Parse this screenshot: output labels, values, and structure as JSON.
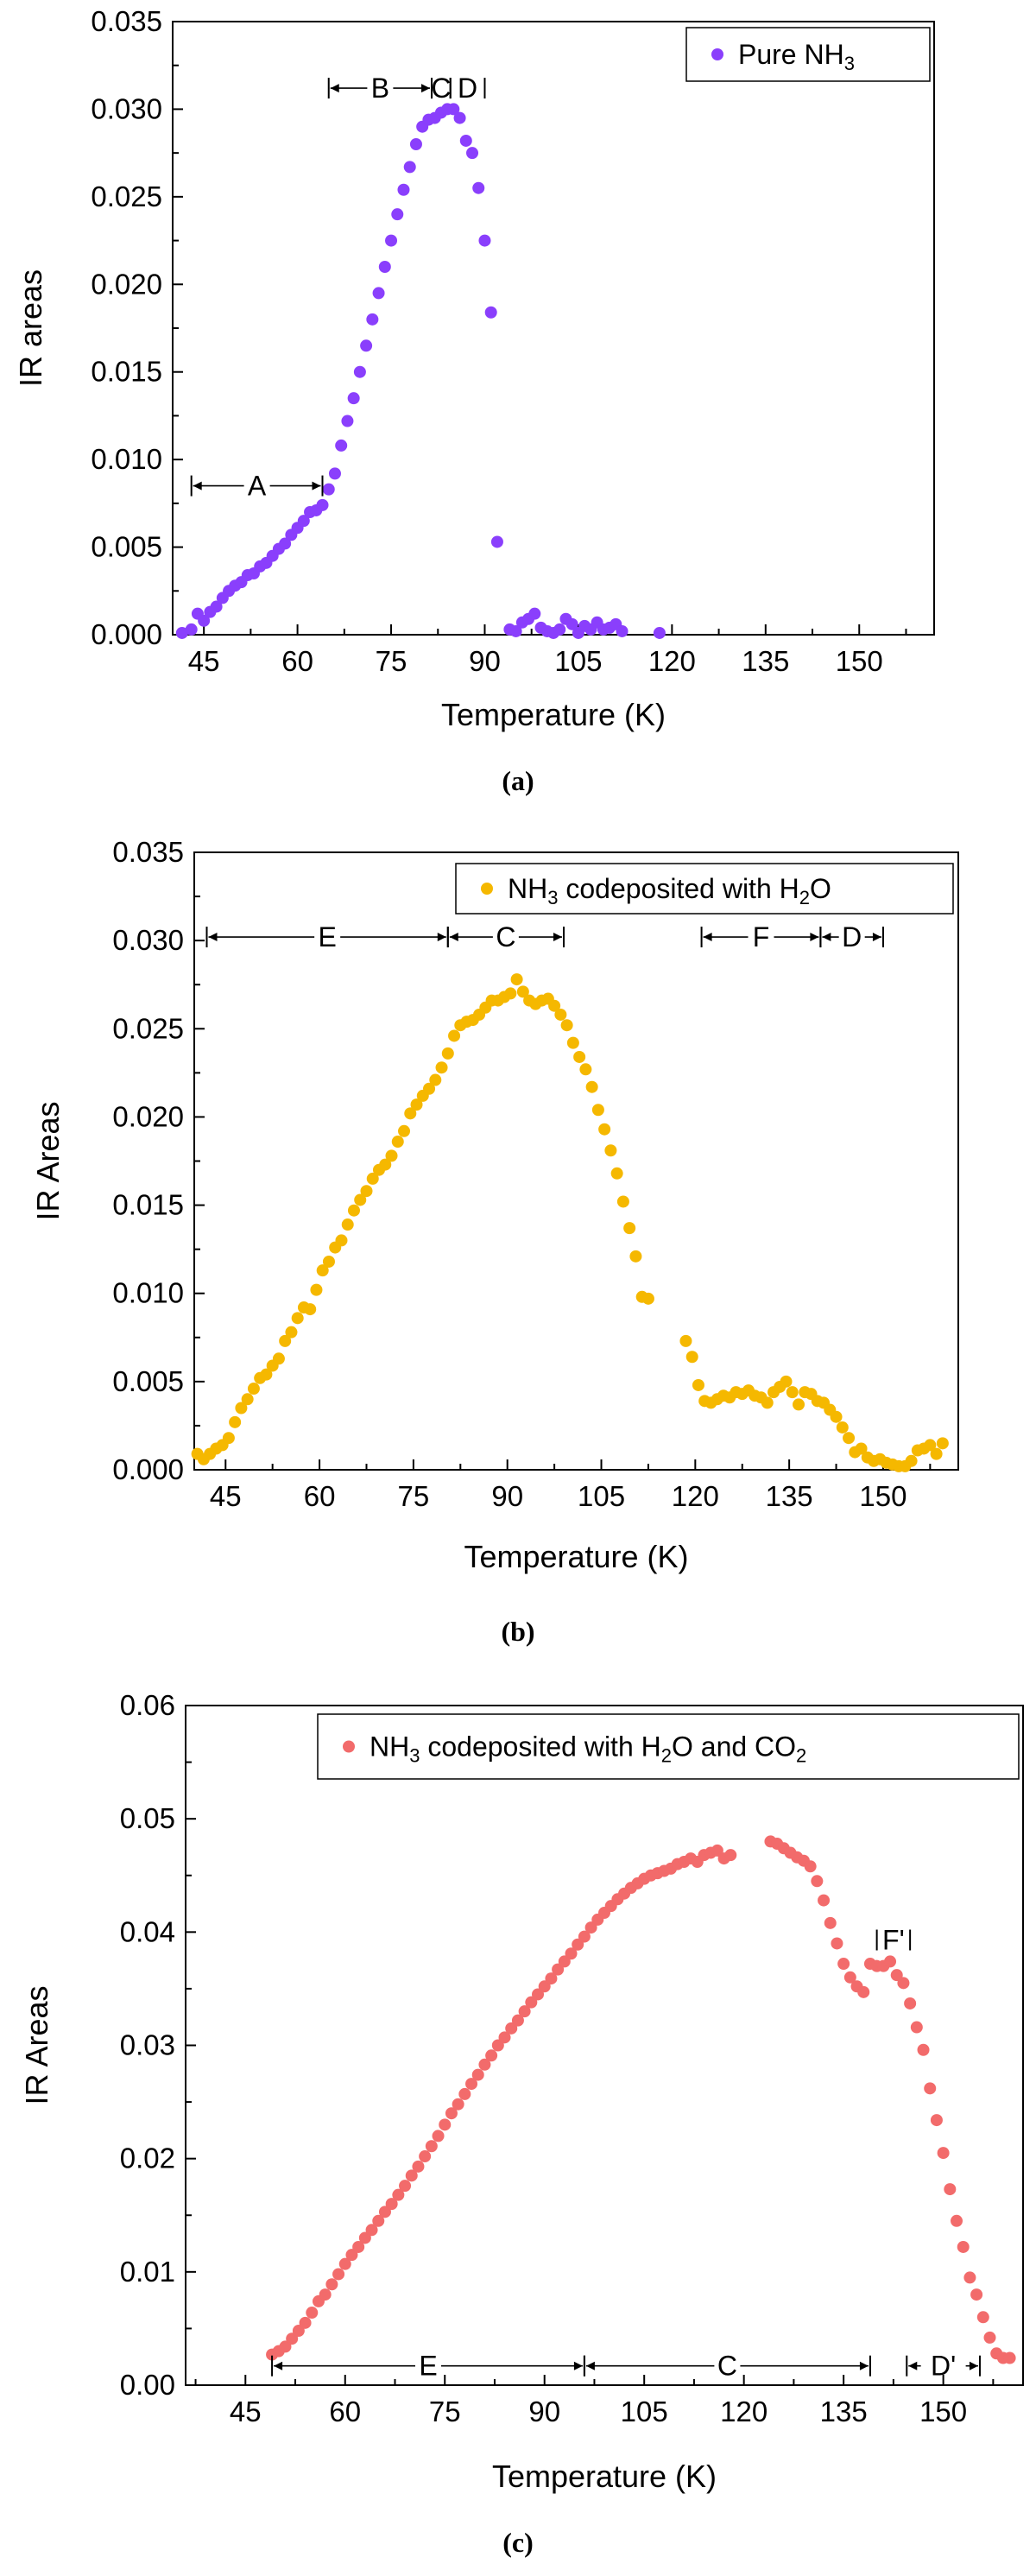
{
  "chart_data": [
    {
      "type": "scatter",
      "caption": "(a)",
      "xlabel": "Temperature (K)",
      "ylabel": "IR areas",
      "xlim": [
        40,
        162
      ],
      "ylim": [
        0,
        0.035
      ],
      "xticks": [
        "45",
        "60",
        "75",
        "90",
        "105",
        "120",
        "135",
        "150"
      ],
      "yticks": [
        "0.000",
        "0.005",
        "0.010",
        "0.015",
        "0.020",
        "0.025",
        "0.030",
        "0.035"
      ],
      "color": "#8a3ffc",
      "legend": {
        "label": "Pure NH",
        "sub": "3",
        "tail": "",
        "sub2": "",
        "tail2": "",
        "location": "top-right"
      },
      "regions": [
        {
          "label": "A",
          "x1": 43,
          "x2": 64,
          "y": 0.0085
        },
        {
          "label": "B",
          "x1": 65,
          "x2": 81.5,
          "y": 0.0312
        },
        {
          "label": "C",
          "x1": 81.5,
          "x2": 84.5,
          "y": 0.0312
        },
        {
          "label": "D",
          "x1": 84.5,
          "x2": 90,
          "y": 0.0312
        }
      ],
      "x": [
        41.5,
        43,
        44,
        45,
        46,
        47,
        48,
        49,
        50,
        51,
        52,
        53,
        54,
        55,
        56,
        57,
        58,
        59,
        60,
        61,
        62,
        63,
        64,
        65,
        66,
        67,
        68,
        69,
        70,
        71,
        72,
        73,
        74,
        75,
        76,
        77,
        78,
        79,
        80,
        81,
        82,
        83,
        84,
        85,
        86,
        87,
        88,
        89,
        90,
        91,
        92,
        94,
        95,
        96,
        97,
        98,
        99,
        100,
        101,
        102,
        103,
        104,
        105,
        106,
        107,
        108,
        109,
        110,
        111,
        112,
        118
      ],
      "y": [
        0.0001,
        0.0003,
        0.0012,
        0.0008,
        0.0013,
        0.0016,
        0.0021,
        0.0025,
        0.0028,
        0.003,
        0.0034,
        0.0035,
        0.0039,
        0.0041,
        0.0045,
        0.0049,
        0.0052,
        0.0057,
        0.0061,
        0.0065,
        0.007,
        0.0071,
        0.0074,
        0.0083,
        0.0092,
        0.0108,
        0.0122,
        0.0135,
        0.015,
        0.0165,
        0.018,
        0.0195,
        0.021,
        0.0225,
        0.024,
        0.0254,
        0.0267,
        0.028,
        0.029,
        0.0294,
        0.0295,
        0.0298,
        0.03,
        0.03,
        0.0295,
        0.0282,
        0.0275,
        0.0255,
        0.0225,
        0.0184,
        0.0053,
        0.0003,
        0.0002,
        0.0007,
        0.0009,
        0.0012,
        0.0004,
        0.0002,
        0.0001,
        0.0003,
        0.0009,
        0.0006,
        0.0001,
        0.0005,
        0.0003,
        0.0007,
        0.0003,
        0.0004,
        0.0006,
        0.0002,
        0.0001
      ]
    },
    {
      "type": "scatter",
      "caption": "(b)",
      "xlabel": "Temperature (K)",
      "ylabel": "IR Areas",
      "xlim": [
        40,
        162
      ],
      "ylim": [
        0,
        0.035
      ],
      "xticks": [
        "45",
        "60",
        "75",
        "90",
        "105",
        "120",
        "135",
        "150"
      ],
      "yticks": [
        "0.000",
        "0.005",
        "0.010",
        "0.015",
        "0.020",
        "0.025",
        "0.030",
        "0.035"
      ],
      "color": "#f5b800",
      "legend": {
        "label": "NH",
        "sub": "3",
        "tail": " codeposited with H",
        "sub2": "2",
        "tail2": "O",
        "location": "top-right"
      },
      "regions": [
        {
          "label": "E",
          "x1": 42,
          "x2": 80.5,
          "y": 0.0302
        },
        {
          "label": "C",
          "x1": 80.5,
          "x2": 99,
          "y": 0.0302
        },
        {
          "label": "F",
          "x1": 121,
          "x2": 140,
          "y": 0.0302
        },
        {
          "label": "D",
          "x1": 140,
          "x2": 150,
          "y": 0.0302
        }
      ],
      "x": [
        40.5,
        41.5,
        42.5,
        43.5,
        44.5,
        45.5,
        46.5,
        47.5,
        48.5,
        49.5,
        50.5,
        51.5,
        52.5,
        53.5,
        54.5,
        55.5,
        56.5,
        57.5,
        58.5,
        59.5,
        60.5,
        61.5,
        62.5,
        63.5,
        64.5,
        65.5,
        66.5,
        67.5,
        68.5,
        69.5,
        70.5,
        71.5,
        72.5,
        73.5,
        74.5,
        75.5,
        76.5,
        77.5,
        78.5,
        79.5,
        80.5,
        81.5,
        82.5,
        83.5,
        84.5,
        85.5,
        86.5,
        87.5,
        88.5,
        89.5,
        90.5,
        91.5,
        92.5,
        93.5,
        94.5,
        95.5,
        96.5,
        97.5,
        98.5,
        99.5,
        100.5,
        101.5,
        102.5,
        103.5,
        104.5,
        105.5,
        106.5,
        107.5,
        108.5,
        109.5,
        110.5,
        111.5,
        112.5,
        118.5,
        119.5,
        120.5,
        121.5,
        122.5,
        123.5,
        124.5,
        125.5,
        126.5,
        127.5,
        128.5,
        129.5,
        130.5,
        131.5,
        132.5,
        133.5,
        134.5,
        135.5,
        136.5,
        137.5,
        138.5,
        139.5,
        140.5,
        141.5,
        142.5,
        143.5,
        144.5,
        145.5,
        146.5,
        147.5,
        148.5,
        149.5,
        150.5,
        151.5,
        152.5,
        153.5,
        154.5,
        155.5,
        156.5,
        157.5,
        158.5,
        159.5
      ],
      "y": [
        0.0009,
        0.0006,
        0.0009,
        0.0012,
        0.0014,
        0.0018,
        0.0027,
        0.0035,
        0.004,
        0.0046,
        0.0052,
        0.0054,
        0.0059,
        0.0063,
        0.0073,
        0.0078,
        0.0086,
        0.0092,
        0.0091,
        0.0102,
        0.0113,
        0.0118,
        0.0126,
        0.013,
        0.0139,
        0.0147,
        0.0153,
        0.0158,
        0.0165,
        0.017,
        0.0173,
        0.0178,
        0.0186,
        0.0192,
        0.0202,
        0.0207,
        0.0212,
        0.0216,
        0.0221,
        0.0228,
        0.0236,
        0.0246,
        0.0252,
        0.0254,
        0.0255,
        0.0258,
        0.0262,
        0.0266,
        0.0266,
        0.0268,
        0.027,
        0.0278,
        0.0271,
        0.0266,
        0.0264,
        0.0266,
        0.0267,
        0.0263,
        0.0258,
        0.0252,
        0.0242,
        0.0234,
        0.0227,
        0.0217,
        0.0204,
        0.0193,
        0.0181,
        0.0168,
        0.0152,
        0.0137,
        0.0121,
        0.0098,
        0.0097,
        0.0073,
        0.0064,
        0.0048,
        0.0039,
        0.0038,
        0.004,
        0.0042,
        0.0041,
        0.0044,
        0.0043,
        0.0045,
        0.0042,
        0.0041,
        0.0038,
        0.0044,
        0.0047,
        0.005,
        0.0044,
        0.0037,
        0.0044,
        0.0043,
        0.0039,
        0.0038,
        0.0034,
        0.003,
        0.0024,
        0.0018,
        0.001,
        0.0012,
        0.0007,
        0.0005,
        0.0006,
        0.0004,
        0.0003,
        0.0002,
        0.0002,
        0.0005,
        0.0011,
        0.0012,
        0.0014,
        0.0009,
        0.0015
      ]
    },
    {
      "type": "scatter",
      "caption": "(c)",
      "xlabel": "Temperature (K)",
      "ylabel": "IR Areas",
      "xlim": [
        36,
        162
      ],
      "ylim": [
        0,
        0.06
      ],
      "xticks": [
        "45",
        "60",
        "75",
        "90",
        "105",
        "120",
        "135",
        "150"
      ],
      "yticks": [
        "0.00",
        "0.01",
        "0.02",
        "0.03",
        "0.04",
        "0.05",
        "0.06"
      ],
      "color": "#f26b6b",
      "legend": {
        "label": "NH",
        "sub": "3",
        "tail": " codeposited with H",
        "sub2": "2",
        "tail2": "O and CO",
        "sub3": "2",
        "location": "top-right"
      },
      "regions": [
        {
          "label": "E",
          "x1": 49,
          "x2": 96,
          "y": 0.0017
        },
        {
          "label": "C",
          "x1": 96,
          "x2": 139,
          "y": 0.0017
        },
        {
          "label": "D'",
          "x1": 144.5,
          "x2": 155.5,
          "y": 0.0017
        },
        {
          "label": "F'",
          "x1": 140,
          "x2": 145,
          "y": 0.0393
        }
      ],
      "x": [
        49,
        50,
        51,
        52,
        53,
        54,
        55,
        56,
        57,
        58,
        59,
        60,
        61,
        62,
        63,
        64,
        65,
        66,
        67,
        68,
        69,
        70,
        71,
        72,
        73,
        74,
        75,
        76,
        77,
        78,
        79,
        80,
        81,
        82,
        83,
        84,
        85,
        86,
        87,
        88,
        89,
        90,
        91,
        92,
        93,
        94,
        95,
        96,
        97,
        98,
        99,
        100,
        101,
        102,
        103,
        104,
        105,
        106,
        107,
        108,
        109,
        110,
        111,
        112,
        113,
        114,
        115,
        116,
        117,
        118,
        124,
        125,
        126,
        127,
        128,
        129,
        130,
        131,
        132,
        133,
        134,
        135,
        136,
        137,
        138,
        139,
        140,
        141,
        142,
        143,
        144,
        145,
        146,
        147,
        148,
        149,
        150,
        151,
        152,
        153,
        154,
        155,
        156,
        157,
        158,
        159,
        160
      ],
      "y": [
        0.0027,
        0.003,
        0.0034,
        0.0041,
        0.0048,
        0.0055,
        0.0064,
        0.0074,
        0.008,
        0.0089,
        0.0098,
        0.0107,
        0.0115,
        0.0122,
        0.013,
        0.0137,
        0.0145,
        0.0153,
        0.016,
        0.0168,
        0.0176,
        0.0185,
        0.0193,
        0.0202,
        0.0211,
        0.022,
        0.023,
        0.024,
        0.0248,
        0.0257,
        0.0266,
        0.0274,
        0.0283,
        0.0291,
        0.03,
        0.0307,
        0.0315,
        0.0322,
        0.033,
        0.0338,
        0.0345,
        0.0352,
        0.0359,
        0.0367,
        0.0374,
        0.0381,
        0.0389,
        0.0396,
        0.0404,
        0.0411,
        0.0417,
        0.0423,
        0.0429,
        0.0434,
        0.0439,
        0.0443,
        0.0447,
        0.045,
        0.0452,
        0.0454,
        0.0456,
        0.046,
        0.0462,
        0.0465,
        0.0462,
        0.0468,
        0.047,
        0.0472,
        0.0465,
        0.0468,
        0.048,
        0.0478,
        0.0474,
        0.047,
        0.0466,
        0.0463,
        0.0458,
        0.0445,
        0.0428,
        0.0408,
        0.039,
        0.0372,
        0.036,
        0.0352,
        0.0347,
        0.0372,
        0.037,
        0.037,
        0.0374,
        0.0362,
        0.0355,
        0.0337,
        0.0316,
        0.0296,
        0.0262,
        0.0234,
        0.0205,
        0.0173,
        0.0145,
        0.0122,
        0.0095,
        0.008,
        0.006,
        0.0042,
        0.0028,
        0.0024,
        0.0024
      ]
    }
  ]
}
